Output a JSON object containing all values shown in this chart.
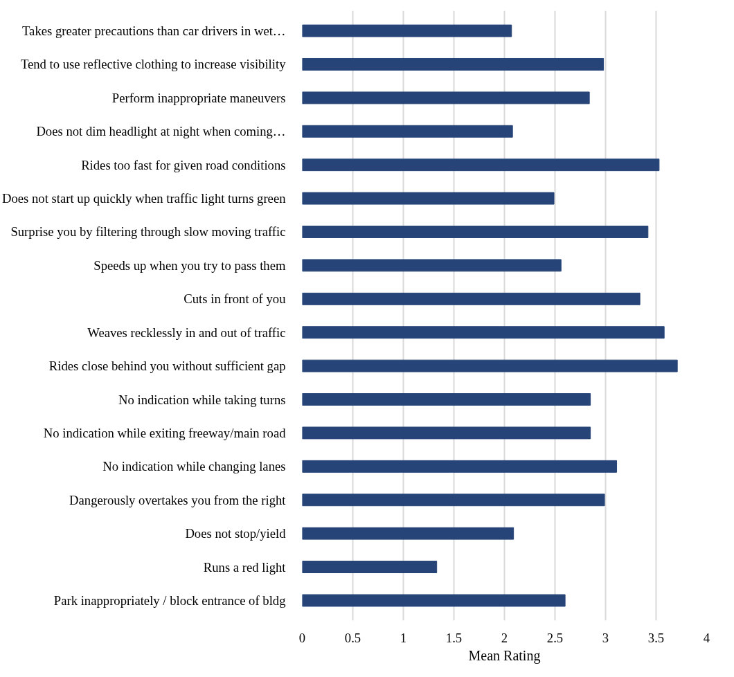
{
  "chart_data": {
    "type": "bar",
    "orientation": "horizontal",
    "xlabel": "Mean Rating",
    "categories": [
      "Takes greater precautions than car drivers in wet…",
      "Tend to use reflective clothing to increase visibility",
      "Perform inappropriate maneuvers",
      "Does not dim headlight at night when coming…",
      "Rides too fast for given road conditions",
      "Does not start up quickly when traffic light turns green",
      "Surprise you by filtering through slow moving traffic",
      "Speeds up when you try to pass them",
      "Cuts in front of you",
      "Weaves recklessly in and out of traffic",
      "Rides close behind you without sufficient gap",
      "No indication while taking turns",
      "No indication while exiting freeway/main road",
      "No indication while changing lanes",
      "Dangerously overtakes you from the right",
      "Does not stop/yield",
      "Runs a red light",
      "Park inappropriately / block entrance of bldg"
    ],
    "values": [
      2.07,
      2.98,
      2.84,
      2.08,
      3.53,
      2.49,
      3.42,
      2.56,
      3.34,
      3.58,
      3.71,
      2.85,
      2.85,
      3.11,
      2.99,
      2.09,
      1.33,
      2.6
    ],
    "color": "#264478",
    "xlim": [
      0,
      4
    ],
    "xticks": [
      0,
      0.5,
      1,
      1.5,
      2,
      2.5,
      3,
      3.5,
      4
    ],
    "grid": "x"
  }
}
